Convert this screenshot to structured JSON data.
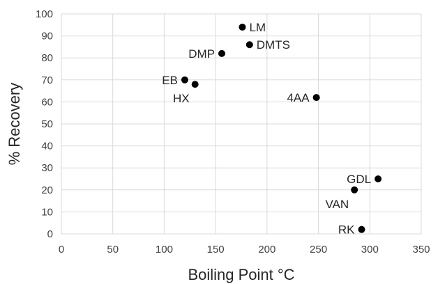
{
  "chart_data": {
    "type": "scatter",
    "title": "",
    "xlabel": "Boiling Point °C",
    "ylabel": "% Recovery",
    "xlim": [
      0,
      350
    ],
    "ylim": [
      0,
      100
    ],
    "xticks": [
      0,
      50,
      100,
      150,
      200,
      250,
      300,
      350
    ],
    "yticks": [
      0,
      10,
      20,
      30,
      40,
      50,
      60,
      70,
      80,
      90,
      100
    ],
    "grid": true,
    "legend": "none",
    "marker_color": "#000000",
    "points": [
      {
        "label": "LM",
        "x": 176,
        "y": 94,
        "label_pos": "right"
      },
      {
        "label": "DMTS",
        "x": 183,
        "y": 86,
        "label_pos": "right"
      },
      {
        "label": "DMP",
        "x": 156,
        "y": 82,
        "label_pos": "left"
      },
      {
        "label": "EB",
        "x": 120,
        "y": 70,
        "label_pos": "left"
      },
      {
        "label": "HX",
        "x": 130,
        "y": 68,
        "label_pos": "below-left"
      },
      {
        "label": "4AA",
        "x": 248,
        "y": 62,
        "label_pos": "left"
      },
      {
        "label": "GDL",
        "x": 308,
        "y": 25,
        "label_pos": "left"
      },
      {
        "label": "VAN",
        "x": 285,
        "y": 20,
        "label_pos": "below-left"
      },
      {
        "label": "RK",
        "x": 292,
        "y": 2,
        "label_pos": "left"
      }
    ]
  }
}
